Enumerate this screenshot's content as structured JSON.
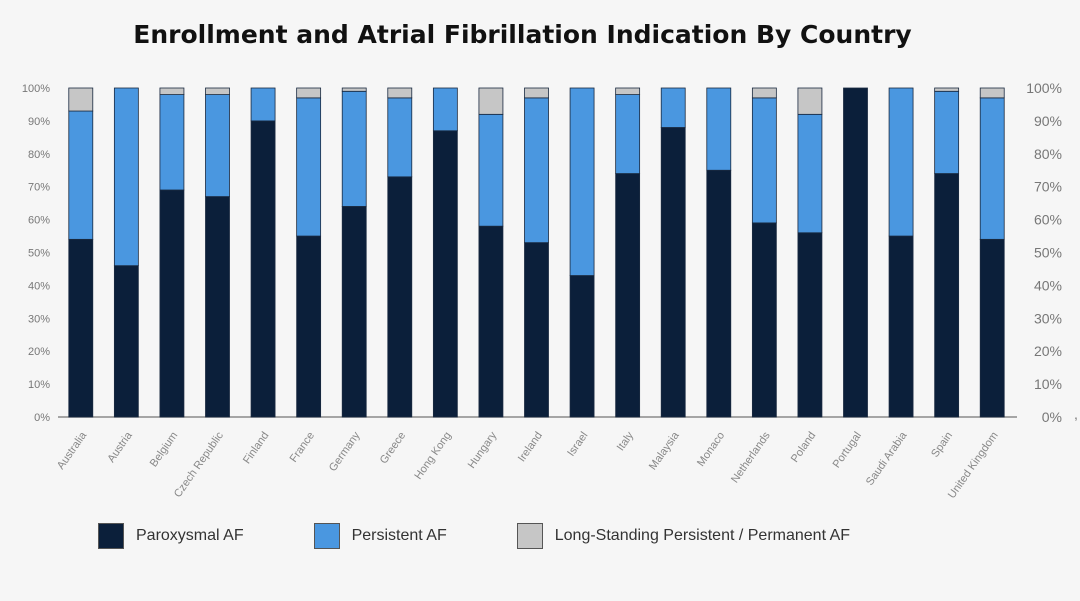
{
  "chart_data": {
    "type": "bar",
    "stacked": true,
    "title": "Enrollment and Atrial Fibrillation Indication By Country",
    "xlabel": "",
    "ylabel": "",
    "ylim": [
      0,
      100
    ],
    "yticks": [
      "0%",
      "10%",
      "20%",
      "30%",
      "40%",
      "50%",
      "60%",
      "70%",
      "80%",
      "90%",
      "100%"
    ],
    "legend_position": "bottom",
    "categories": [
      "Australia",
      "Austria",
      "Belgium",
      "Czech Republic",
      "Finland",
      "France",
      "Germany",
      "Greece",
      "Hong Kong",
      "Hungary",
      "Ireland",
      "Israel",
      "Italy",
      "Malaysia",
      "Monaco",
      "Netherlands",
      "Poland",
      "Portugal",
      "Saudi Arabia",
      "Spain",
      "United Kingdom"
    ],
    "series": [
      {
        "name": "Paroxysmal AF",
        "color": "#0b1f3a",
        "values": [
          54,
          46,
          69,
          67,
          90,
          55,
          64,
          73,
          87,
          58,
          53,
          43,
          74,
          88,
          75,
          59,
          56,
          100,
          55,
          74,
          54
        ]
      },
      {
        "name": "Persistent AF",
        "color": "#4a97e0",
        "values": [
          39,
          54,
          29,
          31,
          10,
          42,
          35,
          24,
          13,
          34,
          44,
          57,
          24,
          12,
          25,
          38,
          36,
          0,
          45,
          25,
          43
        ]
      },
      {
        "name": "Long-Standing Persistent / Permanent AF",
        "color": "#c6c6c6",
        "values": [
          7,
          0,
          2,
          2,
          0,
          3,
          1,
          3,
          0,
          8,
          3,
          0,
          2,
          0,
          0,
          3,
          8,
          0,
          0,
          1,
          3
        ]
      }
    ]
  },
  "extra_right_mark": ","
}
